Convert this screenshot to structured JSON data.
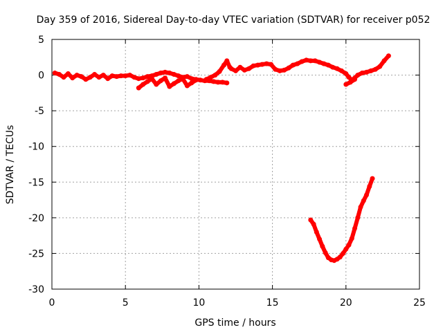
{
  "chart_data": {
    "type": "scatter",
    "title": "Day 359 of 2016, Sidereal Day-to-day VTEC variation (SDTVAR) for receiver p052",
    "xlabel": "GPS time / hours",
    "ylabel": "SDTVAR / TECUs",
    "xlim": [
      0,
      25
    ],
    "ylim": [
      -30,
      5
    ],
    "xticks": [
      0,
      5,
      10,
      15,
      20,
      25
    ],
    "yticks": [
      -30,
      -25,
      -20,
      -15,
      -10,
      -5,
      0,
      5
    ],
    "grid": true,
    "series": [
      {
        "color": "#ff0000",
        "points": [
          [
            0.2,
            0.3
          ],
          [
            0.5,
            0.1
          ],
          [
            0.8,
            -0.3
          ],
          [
            1.1,
            0.2
          ],
          [
            1.4,
            -0.4
          ],
          [
            1.7,
            0.0
          ],
          [
            2.0,
            -0.2
          ],
          [
            2.3,
            -0.6
          ],
          [
            2.6,
            -0.3
          ],
          [
            2.9,
            0.1
          ],
          [
            3.2,
            -0.3
          ],
          [
            3.5,
            0.0
          ],
          [
            3.8,
            -0.5
          ],
          [
            4.1,
            -0.1
          ],
          [
            4.4,
            -0.2
          ],
          [
            4.7,
            -0.1
          ],
          [
            5.0,
            -0.1
          ],
          [
            5.3,
            0.0
          ],
          [
            5.6,
            -0.3
          ],
          [
            5.9,
            -0.5
          ],
          [
            6.2,
            -0.4
          ],
          [
            6.5,
            -0.2
          ],
          [
            6.8,
            -0.1
          ],
          [
            7.1,
            0.1
          ],
          [
            7.4,
            0.3
          ],
          [
            7.7,
            0.4
          ],
          [
            8.0,
            0.3
          ],
          [
            8.3,
            0.1
          ],
          [
            8.6,
            -0.1
          ],
          [
            8.9,
            -0.3
          ],
          [
            9.2,
            -0.2
          ],
          [
            9.5,
            -0.5
          ],
          [
            9.8,
            -0.6
          ],
          [
            10.1,
            -0.7
          ],
          [
            10.4,
            -0.8
          ],
          [
            10.7,
            -0.8
          ],
          [
            11.0,
            -0.9
          ],
          [
            11.3,
            -1.0
          ],
          [
            11.6,
            -1.0
          ],
          [
            11.9,
            -1.1
          ]
        ]
      },
      {
        "color": "#ff0000",
        "points": [
          [
            5.9,
            -1.8
          ],
          [
            6.2,
            -1.3
          ],
          [
            6.5,
            -0.9
          ],
          [
            6.8,
            -0.5
          ],
          [
            7.1,
            -1.3
          ],
          [
            7.4,
            -0.8
          ],
          [
            7.7,
            -0.4
          ],
          [
            8.0,
            -1.6
          ],
          [
            8.3,
            -1.2
          ],
          [
            8.6,
            -0.8
          ],
          [
            8.9,
            -0.5
          ],
          [
            9.2,
            -1.5
          ],
          [
            9.5,
            -1.1
          ],
          [
            9.8,
            -0.7
          ]
        ]
      },
      {
        "color": "#ff0000",
        "points": [
          [
            10.5,
            -0.6
          ],
          [
            10.8,
            -0.3
          ],
          [
            11.1,
            0.0
          ],
          [
            11.4,
            0.5
          ],
          [
            11.7,
            1.4
          ],
          [
            11.9,
            2.0
          ],
          [
            12.1,
            1.1
          ]
        ]
      },
      {
        "color": "#ff0000",
        "points": [
          [
            12.2,
            0.9
          ],
          [
            12.5,
            0.6
          ],
          [
            12.8,
            1.1
          ],
          [
            13.1,
            0.7
          ],
          [
            13.4,
            0.9
          ],
          [
            13.7,
            1.3
          ],
          [
            14.0,
            1.4
          ],
          [
            14.3,
            1.5
          ],
          [
            14.6,
            1.6
          ],
          [
            14.9,
            1.5
          ],
          [
            15.2,
            0.8
          ],
          [
            15.5,
            0.6
          ],
          [
            15.8,
            0.7
          ],
          [
            16.1,
            1.0
          ],
          [
            16.4,
            1.4
          ],
          [
            16.7,
            1.6
          ],
          [
            17.0,
            1.9
          ],
          [
            17.3,
            2.1
          ],
          [
            17.6,
            2.0
          ],
          [
            17.9,
            2.0
          ],
          [
            18.2,
            1.8
          ],
          [
            18.5,
            1.6
          ],
          [
            18.8,
            1.4
          ],
          [
            19.1,
            1.1
          ],
          [
            19.4,
            0.9
          ],
          [
            19.7,
            0.6
          ],
          [
            20.0,
            0.2
          ],
          [
            20.2,
            -0.3
          ],
          [
            20.4,
            -0.7
          ],
          [
            20.6,
            -0.4
          ],
          [
            20.8,
            0.0
          ],
          [
            21.1,
            0.3
          ],
          [
            21.4,
            0.4
          ],
          [
            21.7,
            0.6
          ],
          [
            22.0,
            0.8
          ],
          [
            22.3,
            1.2
          ],
          [
            22.6,
            2.0
          ],
          [
            22.9,
            2.7
          ]
        ]
      },
      {
        "color": "#ff0000",
        "points": [
          [
            20.0,
            -1.3
          ],
          [
            20.3,
            -1.0
          ],
          [
            20.6,
            -0.6
          ]
        ]
      },
      {
        "color": "#ff0000",
        "points": [
          [
            17.6,
            -20.3
          ],
          [
            17.8,
            -20.9
          ],
          [
            18.0,
            -22.0
          ],
          [
            18.2,
            -23.0
          ],
          [
            18.4,
            -24.0
          ],
          [
            18.6,
            -24.9
          ],
          [
            18.8,
            -25.6
          ],
          [
            19.0,
            -25.9
          ],
          [
            19.2,
            -26.0
          ],
          [
            19.4,
            -25.8
          ],
          [
            19.6,
            -25.5
          ],
          [
            19.8,
            -25.0
          ],
          [
            20.0,
            -24.4
          ],
          [
            20.2,
            -23.8
          ],
          [
            20.4,
            -22.9
          ],
          [
            20.6,
            -21.5
          ],
          [
            20.8,
            -20.0
          ],
          [
            21.0,
            -18.5
          ],
          [
            21.2,
            -17.6
          ],
          [
            21.4,
            -16.8
          ],
          [
            21.6,
            -15.6
          ],
          [
            21.8,
            -14.5
          ]
        ]
      }
    ]
  }
}
